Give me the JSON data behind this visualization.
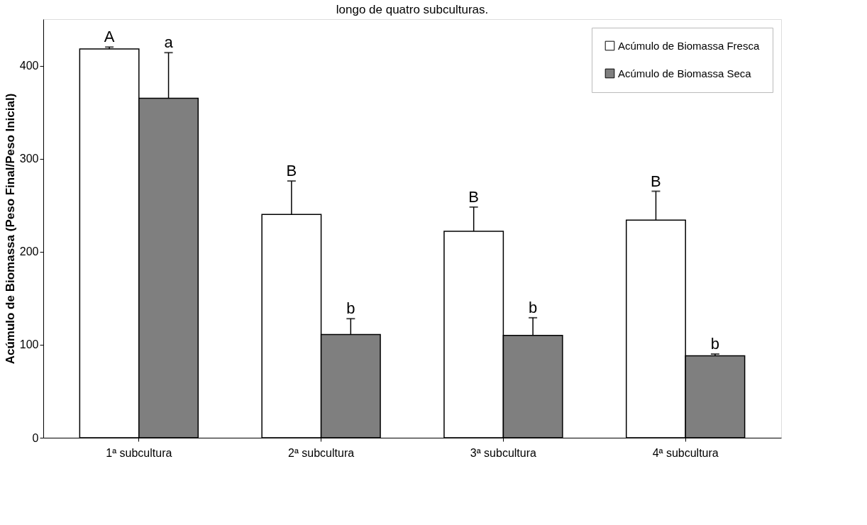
{
  "chart_data": {
    "type": "bar",
    "title": "longo de quatro subculturas.",
    "ylabel": "Acúmulo de Biomassa (Peso Final/Peso Inicial)",
    "categories": [
      "1ª subcultura",
      "2ª subcultura",
      "3ª subcultura",
      "4ª subcultura"
    ],
    "series": [
      {
        "name": "Acúmulo de Biomassa Fresca",
        "color": "#ffffff",
        "values": [
          418,
          240,
          222,
          234
        ],
        "errors": [
          2,
          36,
          26,
          31
        ]
      },
      {
        "name": "Acúmulo de Biomassa Seca",
        "color": "#7f7f7f",
        "values": [
          365,
          111,
          110,
          88
        ],
        "errors": [
          49,
          17,
          19,
          2
        ]
      }
    ],
    "ylim": [
      0,
      450
    ],
    "yticks": [
      0,
      100,
      200,
      300,
      400
    ],
    "grid": false,
    "legend": "top right",
    "annotations": [
      "A",
      "a",
      "B",
      "b",
      "B",
      "b",
      "B",
      "b"
    ]
  }
}
